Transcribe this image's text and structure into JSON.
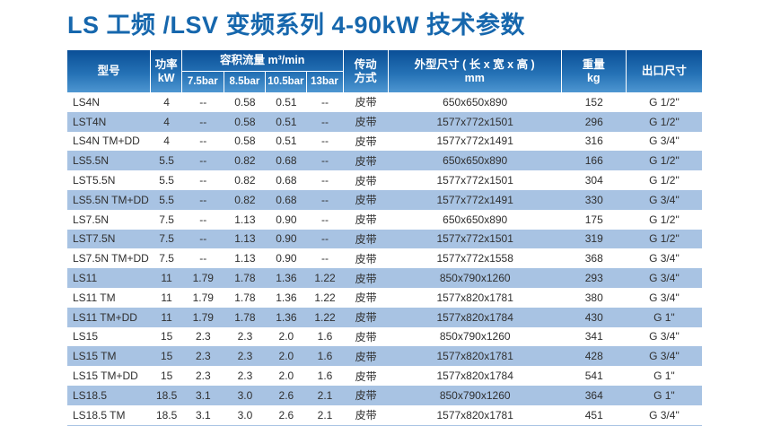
{
  "page": {
    "title": "LS 工频 /LSV 变频系列 4-90kW 技术参数"
  },
  "colors": {
    "title_blue": "#1667ad",
    "header_gradient_top": "#0a4f97",
    "header_gradient_bottom": "#4e96d1",
    "row_stripe_blue": "#a8c3e3",
    "body_text": "#2f2f2f"
  },
  "table": {
    "headers": {
      "model": "型号",
      "power": [
        "功率",
        "kW"
      ],
      "flow_group": "容积流量 m³/min",
      "flow_cols": [
        "7.5bar",
        "8.5bar",
        "10.5bar",
        "13bar"
      ],
      "drive": [
        "传动",
        "方式"
      ],
      "dims": [
        "外型尺寸 ( 长 x 宽 x 高 )",
        "mm"
      ],
      "weight": [
        "重量",
        "kg"
      ],
      "outlet": "出口尺寸"
    },
    "rows": [
      {
        "model": "LS4N",
        "power": "4",
        "flow75": "--",
        "flow85": "0.58",
        "flow105": "0.51",
        "flow13": "--",
        "drive": "皮带",
        "dims": "650x650x890",
        "weight": "152",
        "outlet": "G 1/2\""
      },
      {
        "model": "LST4N",
        "power": "4",
        "flow75": "--",
        "flow85": "0.58",
        "flow105": "0.51",
        "flow13": "--",
        "drive": "皮带",
        "dims": "1577x772x1501",
        "weight": "296",
        "outlet": "G 1/2\""
      },
      {
        "model": "LS4N TM+DD",
        "power": "4",
        "flow75": "--",
        "flow85": "0.58",
        "flow105": "0.51",
        "flow13": "--",
        "drive": "皮带",
        "dims": "1577x772x1491",
        "weight": "316",
        "outlet": "G 3/4\""
      },
      {
        "model": "LS5.5N",
        "power": "5.5",
        "flow75": "--",
        "flow85": "0.82",
        "flow105": "0.68",
        "flow13": "--",
        "drive": "皮带",
        "dims": "650x650x890",
        "weight": "166",
        "outlet": "G 1/2\""
      },
      {
        "model": "LST5.5N",
        "power": "5.5",
        "flow75": "--",
        "flow85": "0.82",
        "flow105": "0.68",
        "flow13": "--",
        "drive": "皮带",
        "dims": "1577x772x1501",
        "weight": "304",
        "outlet": "G 1/2\""
      },
      {
        "model": "LS5.5N TM+DD",
        "power": "5.5",
        "flow75": "--",
        "flow85": "0.82",
        "flow105": "0.68",
        "flow13": "--",
        "drive": "皮带",
        "dims": "1577x772x1491",
        "weight": "330",
        "outlet": "G 3/4\""
      },
      {
        "model": "LS7.5N",
        "power": "7.5",
        "flow75": "--",
        "flow85": "1.13",
        "flow105": "0.90",
        "flow13": "--",
        "drive": "皮带",
        "dims": "650x650x890",
        "weight": "175",
        "outlet": "G 1/2\""
      },
      {
        "model": "LST7.5N",
        "power": "7.5",
        "flow75": "--",
        "flow85": "1.13",
        "flow105": "0.90",
        "flow13": "--",
        "drive": "皮带",
        "dims": "1577x772x1501",
        "weight": "319",
        "outlet": "G 1/2\""
      },
      {
        "model": "LS7.5N TM+DD",
        "power": "7.5",
        "flow75": "--",
        "flow85": "1.13",
        "flow105": "0.90",
        "flow13": "--",
        "drive": "皮带",
        "dims": "1577x772x1558",
        "weight": "368",
        "outlet": "G 3/4\""
      },
      {
        "model": "LS11",
        "power": "11",
        "flow75": "1.79",
        "flow85": "1.78",
        "flow105": "1.36",
        "flow13": "1.22",
        "drive": "皮带",
        "dims": "850x790x1260",
        "weight": "293",
        "outlet": "G 3/4\""
      },
      {
        "model": "LS11 TM",
        "power": "11",
        "flow75": "1.79",
        "flow85": "1.78",
        "flow105": "1.36",
        "flow13": "1.22",
        "drive": "皮带",
        "dims": "1577x820x1781",
        "weight": "380",
        "outlet": "G 3/4\""
      },
      {
        "model": "LS11 TM+DD",
        "power": "11",
        "flow75": "1.79",
        "flow85": "1.78",
        "flow105": "1.36",
        "flow13": "1.22",
        "drive": "皮带",
        "dims": "1577x820x1784",
        "weight": "430",
        "outlet": "G 1\""
      },
      {
        "model": "LS15",
        "power": "15",
        "flow75": "2.3",
        "flow85": "2.3",
        "flow105": "2.0",
        "flow13": "1.6",
        "drive": "皮带",
        "dims": "850x790x1260",
        "weight": "341",
        "outlet": "G 3/4\""
      },
      {
        "model": "LS15 TM",
        "power": "15",
        "flow75": "2.3",
        "flow85": "2.3",
        "flow105": "2.0",
        "flow13": "1.6",
        "drive": "皮带",
        "dims": "1577x820x1781",
        "weight": "428",
        "outlet": "G 3/4\""
      },
      {
        "model": "LS15 TM+DD",
        "power": "15",
        "flow75": "2.3",
        "flow85": "2.3",
        "flow105": "2.0",
        "flow13": "1.6",
        "drive": "皮带",
        "dims": "1577x820x1784",
        "weight": "541",
        "outlet": "G 1\""
      },
      {
        "model": "LS18.5",
        "power": "18.5",
        "flow75": "3.1",
        "flow85": "3.0",
        "flow105": "2.6",
        "flow13": "2.1",
        "drive": "皮带",
        "dims": "850x790x1260",
        "weight": "364",
        "outlet": "G 1\""
      },
      {
        "model": "LS18.5 TM",
        "power": "18.5",
        "flow75": "3.1",
        "flow85": "3.0",
        "flow105": "2.6",
        "flow13": "2.1",
        "drive": "皮带",
        "dims": "1577x820x1781",
        "weight": "451",
        "outlet": "G 3/4\""
      }
    ]
  }
}
